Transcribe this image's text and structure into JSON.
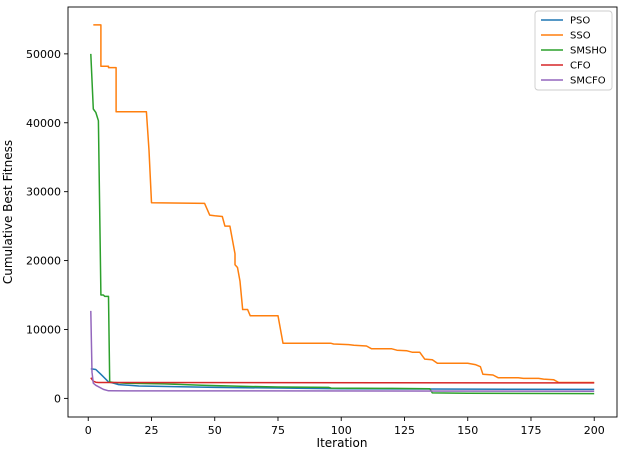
{
  "chart_data": {
    "type": "line",
    "title": "",
    "xlabel": "Iteration",
    "ylabel": "Cumulative Best Fitness",
    "xlim": [
      -8,
      209
    ],
    "ylim": [
      -2700,
      56800
    ],
    "xticks": [
      0,
      25,
      50,
      75,
      100,
      125,
      150,
      175,
      200
    ],
    "yticks": [
      0,
      10000,
      20000,
      30000,
      40000,
      50000
    ],
    "xtick_labels": [
      "0",
      "25",
      "50",
      "75",
      "100",
      "125",
      "150",
      "175",
      "200"
    ],
    "ytick_labels": [
      "0",
      "10000",
      "20000",
      "30000",
      "40000",
      "50000"
    ],
    "grid": false,
    "legend_position": "top-right",
    "series": [
      {
        "name": "PSO",
        "color": "#1f77b4",
        "x": [
          1,
          3,
          5,
          8,
          10,
          12,
          20,
          50,
          100,
          150,
          200
        ],
        "y": [
          4300,
          4200,
          3500,
          2400,
          2200,
          2000,
          1800,
          1600,
          1400,
          1350,
          1300
        ]
      },
      {
        "name": "SSO",
        "color": "#ff7f0e",
        "x": [
          2,
          5,
          5,
          8,
          8,
          11,
          11,
          23,
          24,
          25,
          46,
          48,
          50,
          53,
          54,
          55,
          56,
          58,
          58,
          59,
          60,
          61,
          61,
          63,
          64,
          75,
          77,
          96,
          97,
          103,
          105,
          110,
          112,
          120,
          122,
          126,
          128,
          131,
          133,
          136,
          138,
          150,
          153,
          155,
          156,
          160,
          162,
          170,
          172,
          178,
          180,
          184,
          186,
          200
        ],
        "y": [
          54200,
          54200,
          48200,
          48200,
          48000,
          48000,
          41600,
          41600,
          36000,
          28400,
          28300,
          26600,
          26500,
          26400,
          25000,
          25000,
          25000,
          21000,
          19400,
          19000,
          17000,
          13000,
          12900,
          12900,
          12000,
          12000,
          8000,
          8000,
          7900,
          7800,
          7700,
          7600,
          7200,
          7200,
          7000,
          6900,
          6700,
          6700,
          5700,
          5600,
          5100,
          5100,
          4900,
          4600,
          3500,
          3400,
          3000,
          3000,
          2900,
          2900,
          2800,
          2700,
          2300,
          2300
        ]
      },
      {
        "name": "SMSHO",
        "color": "#2ca02c",
        "x": [
          1,
          2,
          3,
          4,
          5,
          6,
          6.5,
          8,
          8.5,
          10,
          15,
          30,
          45,
          60,
          75,
          95,
          96,
          120,
          135,
          136,
          150,
          200
        ],
        "y": [
          50000,
          42000,
          41500,
          40300,
          15000,
          15000,
          14800,
          14800,
          2400,
          2300,
          2200,
          2100,
          1900,
          1750,
          1650,
          1600,
          1500,
          1450,
          1400,
          800,
          750,
          700
        ]
      },
      {
        "name": "CFO",
        "color": "#d62728",
        "x": [
          1,
          2,
          3,
          4,
          6,
          200
        ],
        "y": [
          3000,
          2500,
          2350,
          2300,
          2300,
          2250
        ]
      },
      {
        "name": "SMCFO",
        "color": "#9467bd",
        "x": [
          1,
          1.5,
          2,
          3,
          4,
          6,
          8,
          200
        ],
        "y": [
          12700,
          3800,
          2200,
          1900,
          1700,
          1300,
          1100,
          1050
        ]
      }
    ]
  }
}
